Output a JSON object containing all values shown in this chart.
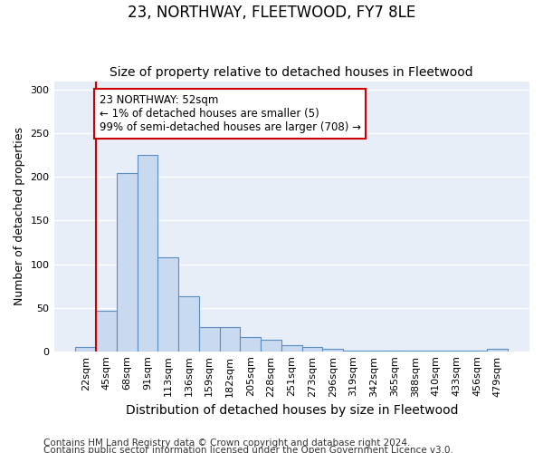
{
  "title": "23, NORTHWAY, FLEETWOOD, FY7 8LE",
  "subtitle": "Size of property relative to detached houses in Fleetwood",
  "xlabel": "Distribution of detached houses by size in Fleetwood",
  "ylabel": "Number of detached properties",
  "footnote1": "Contains HM Land Registry data © Crown copyright and database right 2024.",
  "footnote2": "Contains public sector information licensed under the Open Government Licence v3.0.",
  "bar_labels": [
    "22sqm",
    "45sqm",
    "68sqm",
    "91sqm",
    "113sqm",
    "136sqm",
    "159sqm",
    "182sqm",
    "205sqm",
    "228sqm",
    "251sqm",
    "273sqm",
    "296sqm",
    "319sqm",
    "342sqm",
    "365sqm",
    "388sqm",
    "410sqm",
    "433sqm",
    "456sqm",
    "479sqm"
  ],
  "bar_values": [
    5,
    46,
    204,
    225,
    108,
    63,
    28,
    28,
    16,
    13,
    7,
    5,
    3,
    1,
    1,
    1,
    1,
    1,
    1,
    1,
    3
  ],
  "bar_color": "#c9d9f0",
  "bar_edgecolor": "#5b8ec4",
  "background_color": "#e8eef8",
  "grid_color": "#ffffff",
  "annotation_text": "23 NORTHWAY: 52sqm\n← 1% of detached houses are smaller (5)\n99% of semi-detached houses are larger (708) →",
  "vline_x_index": 1,
  "vline_color": "#cc0000",
  "annotation_box_edgecolor": "#cc0000",
  "ylim": [
    0,
    310
  ],
  "yticks": [
    0,
    50,
    100,
    150,
    200,
    250,
    300
  ],
  "title_fontsize": 12,
  "subtitle_fontsize": 10,
  "xlabel_fontsize": 10,
  "ylabel_fontsize": 9,
  "tick_fontsize": 8,
  "annot_fontsize": 8.5,
  "footnote_fontsize": 7.5
}
